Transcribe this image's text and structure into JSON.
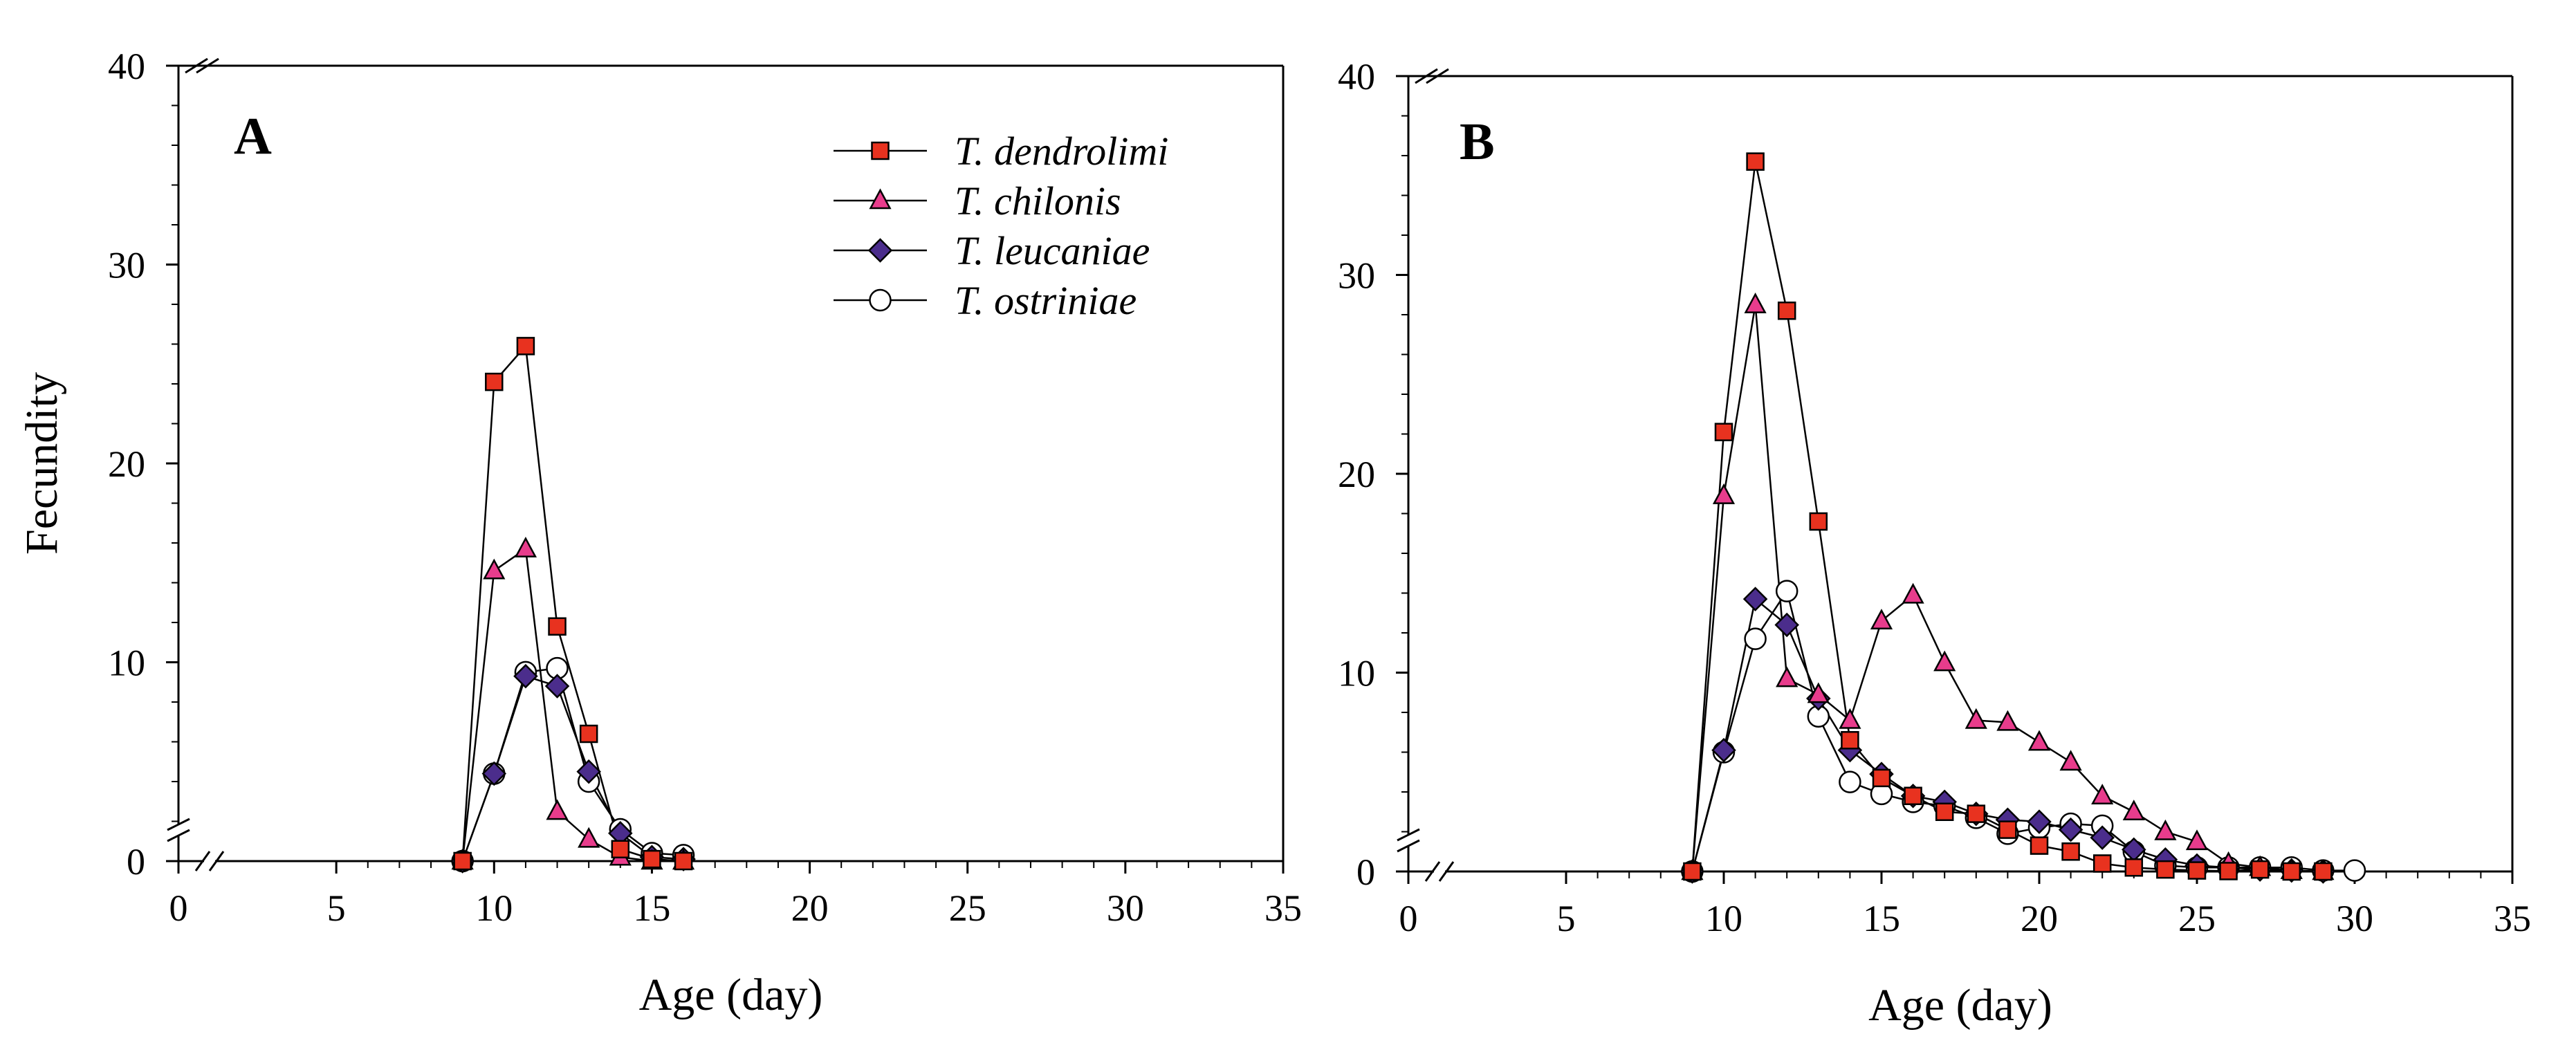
{
  "figure": {
    "legend": [
      {
        "name": "T. dendrolimi",
        "marker": "square",
        "fill": "#e8321f"
      },
      {
        "name": "T. chilonis",
        "marker": "triangle",
        "fill": "#e83c8c"
      },
      {
        "name": "T. leucaniae",
        "marker": "diamond",
        "fill": "#4b2d8c"
      },
      {
        "name": "T. ostriniae",
        "marker": "circle",
        "fill": "#ffffff"
      }
    ]
  },
  "chart_data": [
    {
      "type": "line",
      "panel_label": "A",
      "xlabel": "Age (day)",
      "ylabel": "Fecundity",
      "xlim": [
        0,
        35
      ],
      "ylim": [
        0,
        40
      ],
      "x_ticks": [
        "0",
        "5",
        "10",
        "15",
        "20",
        "25",
        "30",
        "35"
      ],
      "y_ticks": [
        "0",
        "10",
        "20",
        "30",
        "40"
      ],
      "axis_break": true,
      "series": [
        {
          "name": "T. dendrolimi",
          "x": [
            9,
            10,
            11,
            12,
            13,
            14,
            15,
            16
          ],
          "y": [
            0,
            24.1,
            25.9,
            11.8,
            6.4,
            0.6,
            0.1,
            0.0
          ]
        },
        {
          "name": "T. chilonis",
          "x": [
            9,
            10,
            11,
            12,
            13,
            14,
            15,
            16
          ],
          "y": [
            0,
            14.6,
            15.7,
            2.5,
            1.1,
            0.2,
            0.0,
            0.0
          ]
        },
        {
          "name": "T. leucaniae",
          "x": [
            9,
            10,
            11,
            12,
            13,
            14,
            15,
            16
          ],
          "y": [
            0,
            4.4,
            9.3,
            8.8,
            4.5,
            1.4,
            0.2,
            0.1
          ]
        },
        {
          "name": "T. ostriniae",
          "x": [
            9,
            10,
            11,
            12,
            13,
            14,
            15,
            16
          ],
          "y": [
            0,
            4.4,
            9.5,
            9.7,
            4.0,
            1.6,
            0.4,
            0.3
          ]
        }
      ]
    },
    {
      "type": "line",
      "panel_label": "B",
      "xlabel": "Age (day)",
      "ylabel": "",
      "xlim": [
        0,
        35
      ],
      "ylim": [
        0,
        40
      ],
      "x_ticks": [
        "0",
        "5",
        "10",
        "15",
        "20",
        "25",
        "30",
        "35"
      ],
      "y_ticks": [
        "0",
        "10",
        "20",
        "30",
        "40"
      ],
      "axis_break": true,
      "series": [
        {
          "name": "T. dendrolimi",
          "x": [
            9,
            10,
            11,
            12,
            13,
            14,
            15,
            16,
            17,
            18,
            19,
            20,
            21,
            22,
            23,
            24,
            25,
            26,
            27,
            28,
            29
          ],
          "y": [
            0,
            22.1,
            35.7,
            28.2,
            17.6,
            6.6,
            4.7,
            3.8,
            3.0,
            2.9,
            2.1,
            1.3,
            1.0,
            0.4,
            0.2,
            0.1,
            0.05,
            0.02,
            0.1,
            0.0,
            0.0
          ]
        },
        {
          "name": "T. chilonis",
          "x": [
            9,
            10,
            11,
            12,
            13,
            14,
            15,
            16,
            17,
            18,
            19,
            20,
            21,
            22,
            23,
            24,
            25,
            26,
            27,
            28,
            29
          ],
          "y": [
            0,
            18.9,
            28.5,
            9.7,
            8.9,
            7.6,
            12.6,
            13.9,
            10.5,
            7.6,
            7.5,
            6.5,
            5.5,
            3.8,
            3.0,
            2.0,
            1.5,
            0.4,
            0.2,
            0.05,
            0.0
          ]
        },
        {
          "name": "T. leucaniae",
          "x": [
            9,
            10,
            11,
            12,
            13,
            14,
            15,
            16,
            17,
            18,
            19,
            20,
            21,
            22,
            23,
            24,
            25,
            26,
            27,
            28,
            29
          ],
          "y": [
            0,
            6.1,
            13.7,
            12.4,
            8.7,
            6.1,
            4.9,
            3.8,
            3.5,
            2.9,
            2.6,
            2.5,
            2.1,
            1.7,
            1.1,
            0.6,
            0.3,
            0.2,
            0.1,
            0.05,
            0.0
          ]
        },
        {
          "name": "T. ostriniae",
          "x": [
            9,
            10,
            11,
            12,
            13,
            14,
            15,
            16,
            17,
            18,
            19,
            20,
            21,
            22,
            23,
            24,
            25,
            26,
            27,
            28,
            29,
            30
          ],
          "y": [
            0,
            6.0,
            11.7,
            14.1,
            7.8,
            4.5,
            3.9,
            3.5,
            3.3,
            2.7,
            1.9,
            2.2,
            2.4,
            2.3,
            1.0,
            0.3,
            0.2,
            0.2,
            0.2,
            0.2,
            0.05,
            0.05
          ]
        }
      ]
    }
  ]
}
